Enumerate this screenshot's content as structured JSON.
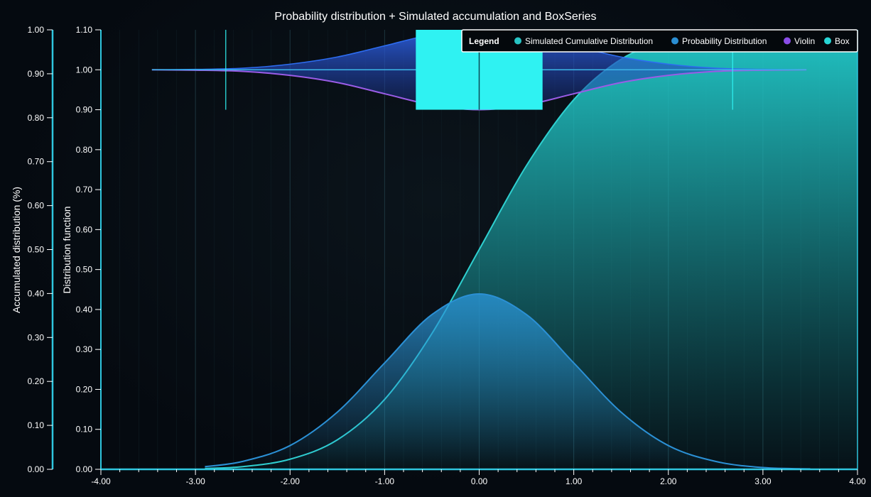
{
  "chart_data": {
    "type": "area",
    "title": "Probability distribution + Simulated accumulation and BoxSeries",
    "x_axis": {
      "label": "",
      "range": [
        -4,
        4
      ],
      "ticks": [
        -4,
        -3,
        -2,
        -1,
        0,
        1,
        2,
        3,
        4
      ],
      "tick_labels": [
        "-4.00",
        "-3.00",
        "-2.00",
        "-1.00",
        "0.00",
        "1.00",
        "2.00",
        "3.00",
        "4.00"
      ]
    },
    "y_axis_left": {
      "label": "Accumulated distribution (%)",
      "range": [
        0,
        1
      ],
      "ticks": [
        0,
        0.1,
        0.2,
        0.3,
        0.4,
        0.5,
        0.6,
        0.7,
        0.8,
        0.9,
        1.0
      ],
      "tick_labels": [
        "0.00",
        "0.10",
        "0.20",
        "0.30",
        "0.40",
        "0.50",
        "0.60",
        "0.70",
        "0.80",
        "0.90",
        "1.00"
      ]
    },
    "y_axis_right": {
      "label": "Distribution function",
      "range": [
        0,
        1.1
      ],
      "ticks": [
        0,
        0.1,
        0.2,
        0.3,
        0.4,
        0.5,
        0.6,
        0.7,
        0.8,
        0.9,
        1.0,
        1.1
      ],
      "tick_labels": [
        "0.00",
        "0.10",
        "0.20",
        "0.30",
        "0.40",
        "0.50",
        "0.60",
        "0.70",
        "0.80",
        "0.90",
        "1.00",
        "1.10"
      ]
    },
    "grid": true,
    "legend": {
      "title": "Legend",
      "placement": "top-right",
      "entries": [
        {
          "name": "Simulated Cumulative Distribution",
          "color": "#27c4c4"
        },
        {
          "name": "Probability Distribution",
          "color": "#2a8ed3"
        },
        {
          "name": "Violin",
          "color": "#8a4de8"
        },
        {
          "name": "Box",
          "color": "#27d6d6"
        }
      ]
    },
    "series": [
      {
        "name": "Simulated Cumulative Distribution",
        "kind": "cdf",
        "color": "#2fd0d0",
        "x": [
          -2.9,
          -2.5,
          -2.0,
          -1.5,
          -1.0,
          -0.5,
          0.0,
          0.5,
          1.0,
          1.5,
          2.0,
          2.5,
          3.0,
          3.5,
          4.0
        ],
        "y": [
          0.002,
          0.006,
          0.023,
          0.067,
          0.159,
          0.309,
          0.5,
          0.691,
          0.841,
          0.933,
          0.977,
          0.994,
          0.999,
          1.0,
          1.0
        ]
      },
      {
        "name": "Probability Distribution",
        "kind": "pdf",
        "color": "#2b90d5",
        "x": [
          -2.9,
          -2.5,
          -2.0,
          -1.5,
          -1.0,
          -0.5,
          0.0,
          0.5,
          1.0,
          1.5,
          2.0,
          2.5,
          3.0,
          3.5
        ],
        "y": [
          0.006,
          0.018,
          0.054,
          0.13,
          0.242,
          0.352,
          0.399,
          0.352,
          0.242,
          0.13,
          0.054,
          0.018,
          0.004,
          0.001
        ]
      },
      {
        "name": "Violin",
        "kind": "violin",
        "color": "#9a5ce6",
        "center": 1.0,
        "x": [
          -3.46,
          -3.0,
          -2.5,
          -2.0,
          -1.5,
          -1.0,
          -0.5,
          0.0,
          0.5,
          1.0,
          1.5,
          2.0,
          2.5,
          3.0,
          3.46
        ],
        "half_width": [
          0.0,
          0.001,
          0.004,
          0.014,
          0.032,
          0.06,
          0.088,
          0.1,
          0.088,
          0.06,
          0.032,
          0.014,
          0.004,
          0.001,
          0.0
        ]
      },
      {
        "name": "Box",
        "kind": "box",
        "color": "#2ff2f2",
        "position": 1.0,
        "whisker_low": -2.68,
        "q1": -0.67,
        "median": 0.0,
        "q3": 0.67,
        "whisker_high": 2.68,
        "box_bottom": 0.9,
        "box_top": 1.1
      }
    ]
  }
}
